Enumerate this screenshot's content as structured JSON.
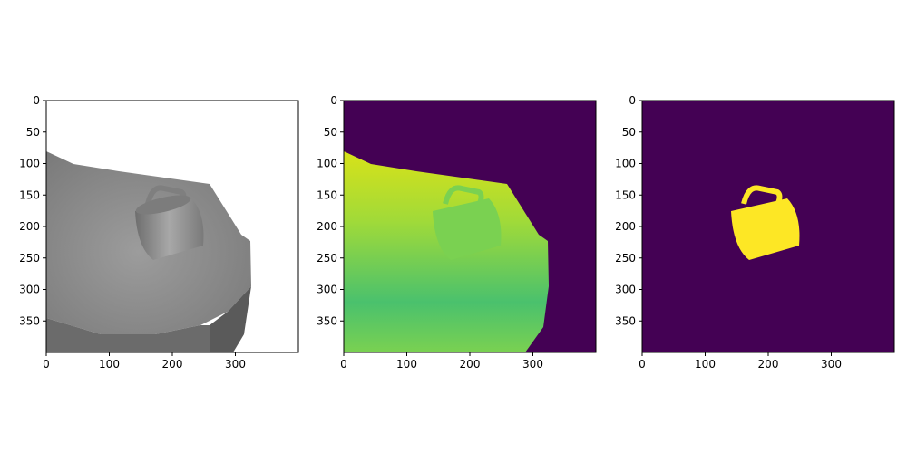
{
  "chart_data": [
    {
      "type": "image",
      "content": "grayscale-render",
      "xlim": [
        0,
        400
      ],
      "ylim": [
        400,
        0
      ],
      "xticks": [
        0,
        100,
        200,
        300
      ],
      "yticks": [
        0,
        50,
        100,
        150,
        200,
        250,
        300,
        350
      ],
      "colors": {
        "table_light": "#9a9a9a",
        "table_dark": "#4f4f4f",
        "mug": "#8c8c8c",
        "mug_dark": "#6a6a6a"
      }
    },
    {
      "type": "image",
      "content": "depth-map",
      "colormap": "viridis",
      "xlim": [
        0,
        400
      ],
      "ylim": [
        400,
        0
      ],
      "xticks": [
        0,
        100,
        200,
        300
      ],
      "yticks": [
        0,
        50,
        100,
        150,
        200,
        250,
        300,
        350
      ],
      "colors": {
        "background": "#440154",
        "near": "#dde318",
        "mid": "#6ece58",
        "far": "#3dbc74",
        "mug": "#7ad151"
      }
    },
    {
      "type": "image",
      "content": "object-mask",
      "colormap": "viridis",
      "xlim": [
        0,
        400
      ],
      "ylim": [
        400,
        0
      ],
      "xticks": [
        0,
        100,
        200,
        300
      ],
      "yticks": [
        0,
        50,
        100,
        150,
        200,
        250,
        300,
        350
      ],
      "colors": {
        "background": "#440154",
        "mask": "#fde725"
      }
    }
  ]
}
